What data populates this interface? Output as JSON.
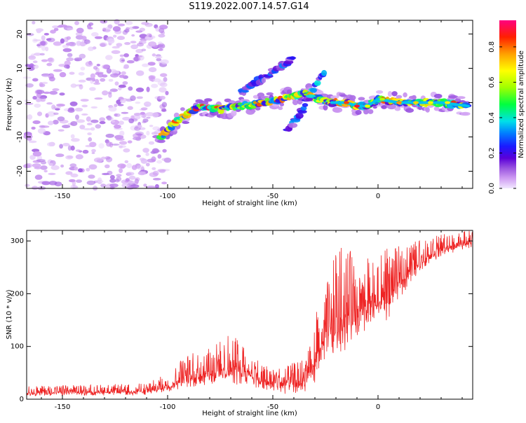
{
  "title": "S119.2022.007.14.57.G14",
  "chart_data": [
    {
      "type": "heatmap",
      "xlabel": "Height of straight line (km)",
      "ylabel": "Frequency (Hz)",
      "xlim": [
        -167,
        45
      ],
      "ylim": [
        -25,
        24
      ],
      "xticks": [
        -150,
        -100,
        -50,
        0
      ],
      "yticks": [
        -20,
        -10,
        0,
        10,
        20
      ],
      "colorbar": {
        "label": "Normalized spectral amplitude",
        "range": [
          0,
          0.95
        ],
        "ticks": [
          0.0,
          0.2,
          0.4,
          0.6,
          0.8
        ],
        "colormap": [
          "#f2e8ff",
          "#cf9cf2",
          "#9a55e0",
          "#5a00d8",
          "#1a1aff",
          "#0080ff",
          "#00e0e8",
          "#00ff40",
          "#a0ff00",
          "#ffff00",
          "#ffa000",
          "#ff2000",
          "#ff0080"
        ]
      },
      "features": [
        {
          "name": "noise",
          "x_range": [
            -167,
            -100
          ],
          "y_range": [
            -25,
            24
          ],
          "amplitude": [
            0.02,
            0.15
          ]
        },
        {
          "name": "band",
          "points": [
            [
              -103,
              -10
            ],
            [
              -95,
              -5
            ],
            [
              -85,
              -1
            ],
            [
              -75,
              -2
            ],
            [
              -65,
              -1
            ],
            [
              -55,
              0
            ],
            [
              -45,
              1
            ],
            [
              -35,
              3
            ],
            [
              -28,
              1
            ],
            [
              -22,
              0
            ],
            [
              -15,
              0
            ],
            [
              -10,
              -1
            ],
            [
              -5,
              -1
            ],
            [
              0,
              1
            ],
            [
              10,
              0
            ],
            [
              20,
              0
            ],
            [
              30,
              0
            ],
            [
              43,
              -1
            ]
          ],
          "amplitude_peak": 0.9
        },
        {
          "name": "upper-branch",
          "points": [
            [
              -65,
              3
            ],
            [
              -58,
              6
            ],
            [
              -52,
              8
            ],
            [
              -45,
              11
            ],
            [
              -40,
              13
            ]
          ],
          "amplitude_peak": 0.4
        },
        {
          "name": "lower-branch",
          "points": [
            [
              -43,
              -8
            ],
            [
              -38,
              -4
            ],
            [
              -34,
              0
            ],
            [
              -30,
              5
            ],
            [
              -25,
              10
            ]
          ],
          "amplitude_peak": 0.5
        }
      ]
    },
    {
      "type": "line",
      "xlabel": "Height of straight line (km)",
      "ylabel": "SNR (10 * v/v)",
      "xlim": [
        -167,
        45
      ],
      "ylim": [
        0,
        320
      ],
      "xticks": [
        -150,
        -100,
        -50,
        0
      ],
      "yticks": [
        0,
        100,
        200,
        300
      ],
      "line_color": "#ee2222",
      "envelope": {
        "x": [
          -167,
          -110,
          -100,
          -95,
          -90,
          -80,
          -70,
          -60,
          -55,
          -45,
          -35,
          -30,
          -25,
          -20,
          -15,
          -10,
          -5,
          0,
          5,
          10,
          20,
          30,
          45
        ],
        "base": [
          10,
          12,
          20,
          30,
          35,
          40,
          45,
          40,
          25,
          20,
          25,
          55,
          105,
          125,
          135,
          145,
          155,
          170,
          175,
          210,
          255,
          280,
          295
        ],
        "peak": [
          25,
          30,
          50,
          75,
          85,
          100,
          125,
          90,
          70,
          60,
          80,
          160,
          210,
          280,
          300,
          250,
          270,
          270,
          290,
          290,
          305,
          315,
          320
        ]
      }
    }
  ]
}
